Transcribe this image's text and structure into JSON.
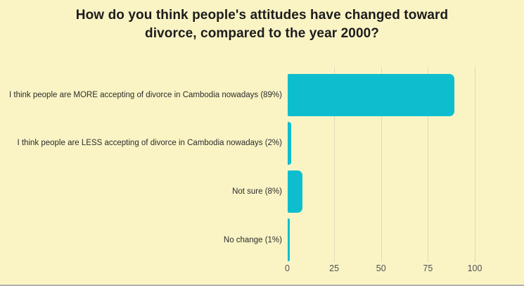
{
  "title": "How do you think people's attitudes have changed toward divorce, compared to the year 2000?",
  "colors": {
    "background": "#FAF4C5",
    "bar": "#0FBECE",
    "title_text": "#1C1C1C",
    "label_text": "#2B2B2B",
    "tick_text": "#4F4F4F",
    "gridline": "#DFD9BA",
    "bottom_edge": "#B0B0AC"
  },
  "chart_data": {
    "type": "bar",
    "orientation": "horizontal",
    "title": "How do you think people's attitudes have changed toward divorce, compared to the year 2000?",
    "categories": [
      "I think people are MORE accepting of divorce in Cambodia nowadays (89%)",
      "I think people are LESS accepting of divorce in Cambodia nowadays (2%)",
      "Not sure (8%)",
      "No change (1%)"
    ],
    "values": [
      89,
      2,
      8,
      1
    ],
    "xlabel": "",
    "ylabel": "",
    "xlim": [
      0,
      100
    ],
    "xticks": [
      0,
      25,
      50,
      75,
      100
    ],
    "grid": true,
    "legend": false,
    "bar_color": "#0FBECE",
    "background_color": "#FAF4C5"
  }
}
